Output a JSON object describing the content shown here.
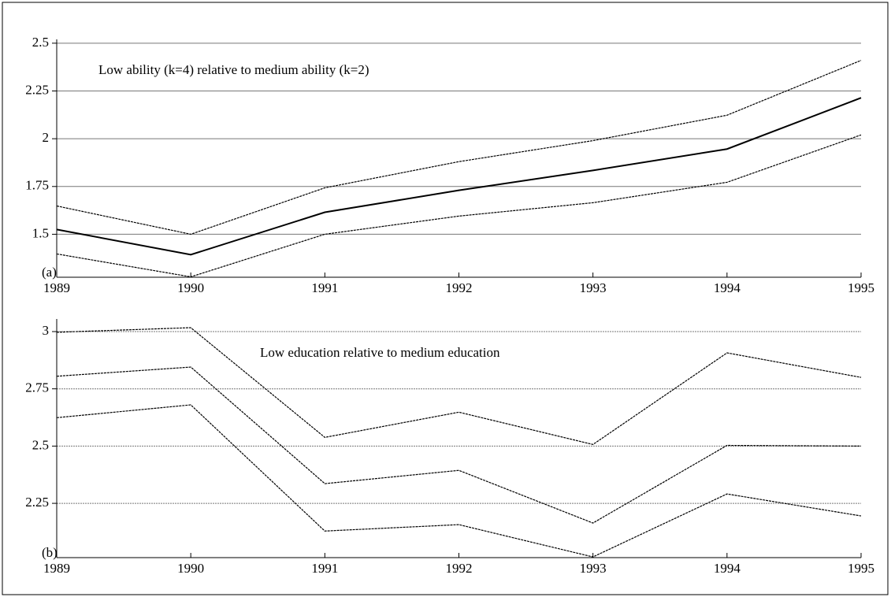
{
  "chart_data": [
    {
      "type": "line",
      "annotation": "Low ability (k=4) relative to medium ability (k=2)",
      "panel_label": "(a)",
      "x": [
        1989,
        1990,
        1991,
        1992,
        1993,
        1994,
        1995
      ],
      "series": [
        {
          "color": "#000000",
          "style": "dotted",
          "values": [
            1.648,
            1.5,
            1.743,
            1.88,
            1.99,
            2.123,
            2.41
          ]
        },
        {
          "color": "#000000",
          "style": "solid",
          "values": [
            1.525,
            1.393,
            1.615,
            1.73,
            1.834,
            1.946,
            2.214
          ]
        },
        {
          "color": "#000000",
          "style": "dotted",
          "values": [
            1.397,
            1.277,
            1.5,
            1.595,
            1.665,
            1.772,
            2.02
          ]
        }
      ],
      "xlim": [
        1989,
        1995
      ],
      "xticks": [
        1989,
        1990,
        1991,
        1992,
        1993,
        1994,
        1995
      ],
      "ylim": [
        1.275,
        2.52
      ],
      "yticks": [
        1.5,
        1.75,
        2,
        2.25,
        2.5
      ],
      "grid": true,
      "grid_style": "solid"
    },
    {
      "type": "line",
      "annotation": "Low education relative to medium education",
      "panel_label": "(b)",
      "x": [
        1989,
        1990,
        1991,
        1992,
        1993,
        1994,
        1995
      ],
      "series": [
        {
          "color": "#000000",
          "style": "dotted",
          "values": [
            2.997,
            3.017,
            2.538,
            2.648,
            2.507,
            2.907,
            2.8
          ]
        },
        {
          "color": "#000000",
          "style": "dotted",
          "values": [
            2.805,
            2.845,
            2.336,
            2.394,
            2.164,
            2.503,
            2.5
          ]
        },
        {
          "color": "#000000",
          "style": "dotted",
          "values": [
            2.624,
            2.68,
            2.129,
            2.157,
            2.016,
            2.291,
            2.195
          ]
        }
      ],
      "xlim": [
        1989,
        1995
      ],
      "xticks": [
        1989,
        1990,
        1991,
        1992,
        1993,
        1994,
        1995
      ],
      "ylim": [
        2.013,
        3.055
      ],
      "yticks": [
        2.25,
        2.5,
        2.75,
        3
      ],
      "grid": true,
      "grid_style": "dotted"
    }
  ]
}
